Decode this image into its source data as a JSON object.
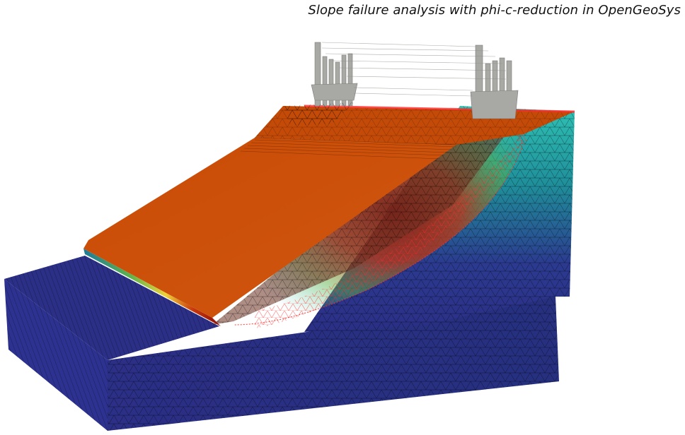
{
  "caption": "Slope failure analysis with phi-c-reduction in OpenGeoSys",
  "colors": {
    "background": "#ffffff",
    "ground_low": "#2b2f86",
    "ground_mid": "#1f8e9a",
    "ground_high": "#2fc1b4",
    "slope_surface": "#c94c05",
    "slope_highlight": "#d35a10",
    "failure_band_red": "#8a0f08",
    "failure_band_yellow": "#f0d23a",
    "failure_band_green": "#5fb44a",
    "mesh_line": "#000000",
    "failure_mesh_line": "#ff2a2a",
    "displacement_glyph": "#a8a8a4"
  },
  "icons": {
    "mesh": "triangular-mesh-icon",
    "glyphs": "displacement-arrows-icon"
  }
}
